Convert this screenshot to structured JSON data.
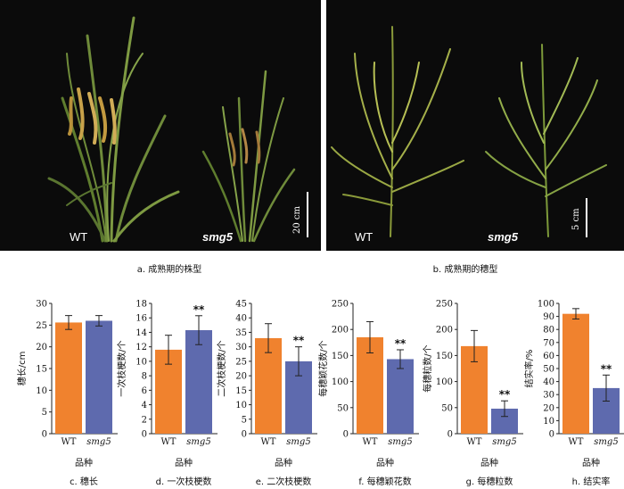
{
  "photos": {
    "a": {
      "labels": [
        "WT",
        "smg5"
      ],
      "scale": "20 cm",
      "caption": "a. 成熟期的株型"
    },
    "b": {
      "labels": [
        "WT",
        "smg5"
      ],
      "scale": "5 cm",
      "caption": "b. 成熟期的穗型"
    }
  },
  "colors": {
    "wt": "#F0822E",
    "smg5": "#5E6AAE",
    "photo_bg": "#0b0b0b"
  },
  "chart_data": [
    {
      "type": "bar",
      "categories": [
        "WT",
        "smg5"
      ],
      "values": [
        25.6,
        26.0
      ],
      "errors": [
        1.6,
        1.2
      ],
      "significance": [
        "",
        ""
      ],
      "ylabel": "穗长/cm",
      "xlabel": "品种",
      "ylim": [
        0,
        30
      ],
      "yticks": [
        0,
        5,
        10,
        15,
        20,
        25,
        30
      ],
      "caption": "c. 穗长"
    },
    {
      "type": "bar",
      "categories": [
        "WT",
        "smg5"
      ],
      "values": [
        11.6,
        14.3
      ],
      "errors": [
        2.0,
        2.0
      ],
      "significance": [
        "",
        "**"
      ],
      "ylabel": "一次枝梗数/个",
      "xlabel": "品种",
      "ylim": [
        0,
        18
      ],
      "yticks": [
        0,
        2,
        4,
        6,
        8,
        10,
        12,
        14,
        16,
        18
      ],
      "caption": "d. 一次枝梗数"
    },
    {
      "type": "bar",
      "categories": [
        "WT",
        "smg5"
      ],
      "values": [
        33,
        25
      ],
      "errors": [
        5,
        5
      ],
      "significance": [
        "",
        "**"
      ],
      "ylabel": "二次枝梗数/个",
      "xlabel": "品种",
      "ylim": [
        0,
        45
      ],
      "yticks": [
        0,
        5,
        10,
        15,
        20,
        25,
        30,
        35,
        40,
        45
      ],
      "caption": "e. 二次枝梗数"
    },
    {
      "type": "bar",
      "categories": [
        "WT",
        "smg5"
      ],
      "values": [
        185,
        143
      ],
      "errors": [
        30,
        18
      ],
      "significance": [
        "",
        "**"
      ],
      "ylabel": "每穗颖花数/个",
      "xlabel": "品种",
      "ylim": [
        0,
        250
      ],
      "yticks": [
        0,
        50,
        100,
        150,
        200,
        250
      ],
      "caption": "f. 每穗颖花数"
    },
    {
      "type": "bar",
      "categories": [
        "WT",
        "smg5"
      ],
      "values": [
        168,
        48
      ],
      "errors": [
        30,
        15
      ],
      "significance": [
        "",
        "**"
      ],
      "ylabel": "每穗粒数/个",
      "xlabel": "品种",
      "ylim": [
        0,
        250
      ],
      "yticks": [
        0,
        50,
        100,
        150,
        200,
        250
      ],
      "caption": "g. 每穗粒数"
    },
    {
      "type": "bar",
      "categories": [
        "WT",
        "smg5"
      ],
      "values": [
        92,
        35
      ],
      "errors": [
        4,
        10
      ],
      "significance": [
        "",
        "**"
      ],
      "ylabel": "结实率/%",
      "xlabel": "品种",
      "ylim": [
        0,
        100
      ],
      "yticks": [
        0,
        10,
        20,
        30,
        40,
        50,
        60,
        70,
        80,
        90,
        100
      ],
      "caption": "h. 结实率"
    }
  ]
}
